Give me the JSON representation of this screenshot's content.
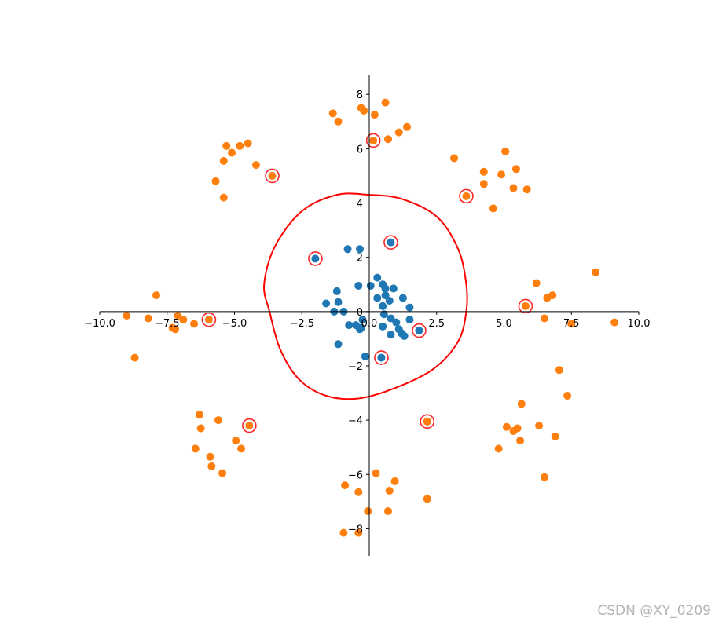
{
  "chart_data": {
    "type": "scatter",
    "title": "",
    "xlabel": "",
    "ylabel": "",
    "xlim": [
      -10,
      10
    ],
    "ylim": [
      -9,
      8.7
    ],
    "x_ticks": [
      -10,
      -7.5,
      -5,
      -2.5,
      0,
      2.5,
      5,
      7.5,
      10
    ],
    "x_tick_labels": [
      "−10.0",
      "−7.5",
      "−5.0",
      "−2.5",
      "0.0",
      "2.5",
      "5.0",
      "7.5",
      "10.0"
    ],
    "y_ticks": [
      -8,
      -6,
      -4,
      -2,
      0,
      2,
      4,
      6,
      8
    ],
    "y_tick_labels": [
      "−8",
      "−6",
      "−4",
      "−2",
      "0",
      "2",
      "4",
      "6",
      "8"
    ],
    "axes_style": "centered spines through origin",
    "grid": false,
    "colors": {
      "class_0": "#1f77b4",
      "class_1": "#ff7f0e",
      "highlight": "#ff0000",
      "boundary": "#ff0000"
    },
    "series": [
      {
        "color": "#1f77b4",
        "points": [
          [
            -0.8,
            2.3
          ],
          [
            -0.35,
            2.3
          ],
          [
            0.8,
            2.55
          ],
          [
            -2.0,
            1.95
          ],
          [
            0.3,
            1.25
          ],
          [
            0.5,
            1.0
          ],
          [
            0.6,
            0.85
          ],
          [
            0.9,
            0.85
          ],
          [
            -0.4,
            0.95
          ],
          [
            0.05,
            0.95
          ],
          [
            -1.2,
            0.75
          ],
          [
            0.3,
            0.5
          ],
          [
            0.6,
            0.6
          ],
          [
            0.75,
            0.4
          ],
          [
            1.25,
            0.5
          ],
          [
            -1.6,
            0.3
          ],
          [
            -1.15,
            0.35
          ],
          [
            0.5,
            0.2
          ],
          [
            1.5,
            0.15
          ],
          [
            -1.3,
            0.0
          ],
          [
            -0.95,
            0.0
          ],
          [
            0.55,
            -0.1
          ],
          [
            -0.25,
            -0.3
          ],
          [
            0.8,
            -0.25
          ],
          [
            1.5,
            -0.3
          ],
          [
            -0.75,
            -0.5
          ],
          [
            -0.5,
            -0.5
          ],
          [
            -0.3,
            -0.6
          ],
          [
            0.5,
            -0.55
          ],
          [
            1.0,
            -0.4
          ],
          [
            1.1,
            -0.65
          ],
          [
            1.85,
            -0.7
          ],
          [
            -0.35,
            -0.65
          ],
          [
            1.2,
            -0.8
          ],
          [
            1.3,
            -0.9
          ],
          [
            0.8,
            -0.85
          ],
          [
            -1.15,
            -1.2
          ],
          [
            -0.15,
            -1.65
          ],
          [
            0.45,
            -1.7
          ]
        ]
      },
      {
        "color": "#ff7f0e",
        "points": [
          [
            -0.3,
            7.5
          ],
          [
            0.6,
            7.7
          ],
          [
            -1.35,
            7.3
          ],
          [
            -0.2,
            7.4
          ],
          [
            0.2,
            7.25
          ],
          [
            -1.15,
            7.0
          ],
          [
            1.4,
            6.8
          ],
          [
            1.1,
            6.6
          ],
          [
            0.7,
            6.35
          ],
          [
            0.15,
            6.3
          ],
          [
            -5.3,
            6.1
          ],
          [
            -4.5,
            6.2
          ],
          [
            -4.8,
            6.1
          ],
          [
            -5.1,
            5.85
          ],
          [
            -5.4,
            5.55
          ],
          [
            -4.2,
            5.4
          ],
          [
            -3.6,
            5.0
          ],
          [
            -5.7,
            4.8
          ],
          [
            -5.4,
            4.2
          ],
          [
            5.05,
            5.9
          ],
          [
            3.15,
            5.65
          ],
          [
            5.45,
            5.25
          ],
          [
            4.25,
            5.15
          ],
          [
            4.9,
            5.05
          ],
          [
            4.25,
            4.7
          ],
          [
            5.35,
            4.55
          ],
          [
            5.85,
            4.5
          ],
          [
            3.6,
            4.25
          ],
          [
            4.6,
            3.8
          ],
          [
            8.4,
            1.45
          ],
          [
            6.2,
            1.05
          ],
          [
            6.8,
            0.6
          ],
          [
            6.6,
            0.5
          ],
          [
            5.8,
            0.2
          ],
          [
            6.5,
            -0.25
          ],
          [
            7.5,
            -0.45
          ],
          [
            9.1,
            -0.4
          ],
          [
            -7.9,
            0.6
          ],
          [
            -9.0,
            -0.15
          ],
          [
            -7.1,
            -0.15
          ],
          [
            -8.2,
            -0.25
          ],
          [
            -6.9,
            -0.3
          ],
          [
            -5.95,
            -0.3
          ],
          [
            -6.5,
            -0.45
          ],
          [
            -7.3,
            -0.6
          ],
          [
            -7.2,
            -0.65
          ],
          [
            -8.7,
            -1.7
          ],
          [
            7.05,
            -2.15
          ],
          [
            7.35,
            -3.1
          ],
          [
            5.65,
            -3.4
          ],
          [
            6.3,
            -4.2
          ],
          [
            5.1,
            -4.25
          ],
          [
            5.5,
            -4.3
          ],
          [
            5.35,
            -4.4
          ],
          [
            6.9,
            -4.6
          ],
          [
            5.6,
            -4.75
          ],
          [
            4.8,
            -5.05
          ],
          [
            6.5,
            -6.1
          ],
          [
            2.15,
            -4.05
          ],
          [
            -6.3,
            -3.8
          ],
          [
            -5.6,
            -4.0
          ],
          [
            -4.45,
            -4.2
          ],
          [
            -6.25,
            -4.3
          ],
          [
            -4.95,
            -4.75
          ],
          [
            -4.75,
            -5.05
          ],
          [
            -6.45,
            -5.05
          ],
          [
            -5.9,
            -5.35
          ],
          [
            -5.85,
            -5.7
          ],
          [
            -5.45,
            -5.95
          ],
          [
            0.25,
            -5.95
          ],
          [
            0.95,
            -6.25
          ],
          [
            -0.9,
            -6.4
          ],
          [
            -0.4,
            -6.65
          ],
          [
            0.75,
            -6.6
          ],
          [
            2.15,
            -6.9
          ],
          [
            -0.05,
            -7.35
          ],
          [
            0.7,
            -7.35
          ],
          [
            -0.95,
            -8.15
          ],
          [
            -0.4,
            -8.15
          ]
        ]
      }
    ],
    "highlighted_points": [
      [
        0.15,
        6.3
      ],
      [
        -3.6,
        5.0
      ],
      [
        3.6,
        4.25
      ],
      [
        0.8,
        2.55
      ],
      [
        -2.0,
        1.95
      ],
      [
        5.8,
        0.2
      ],
      [
        -5.95,
        -0.3
      ],
      [
        1.85,
        -0.7
      ],
      [
        0.45,
        -1.7
      ],
      [
        2.15,
        -4.05
      ],
      [
        -4.45,
        -4.2
      ]
    ],
    "boundary_curve": [
      [
        0.0,
        4.3
      ],
      [
        1.2,
        4.15
      ],
      [
        2.5,
        3.5
      ],
      [
        3.3,
        2.3
      ],
      [
        3.6,
        1.0
      ],
      [
        3.6,
        0.0
      ],
      [
        3.3,
        -1.1
      ],
      [
        2.4,
        -2.1
      ],
      [
        1.0,
        -2.8
      ],
      [
        -0.4,
        -3.2
      ],
      [
        -1.6,
        -3.1
      ],
      [
        -2.6,
        -2.5
      ],
      [
        -3.3,
        -1.4
      ],
      [
        -3.7,
        0.0
      ],
      [
        -3.9,
        1.0
      ],
      [
        -3.5,
        2.4
      ],
      [
        -2.5,
        3.7
      ],
      [
        -1.2,
        4.3
      ],
      [
        0.0,
        4.3
      ]
    ]
  },
  "watermark": "CSDN @XY_0209"
}
